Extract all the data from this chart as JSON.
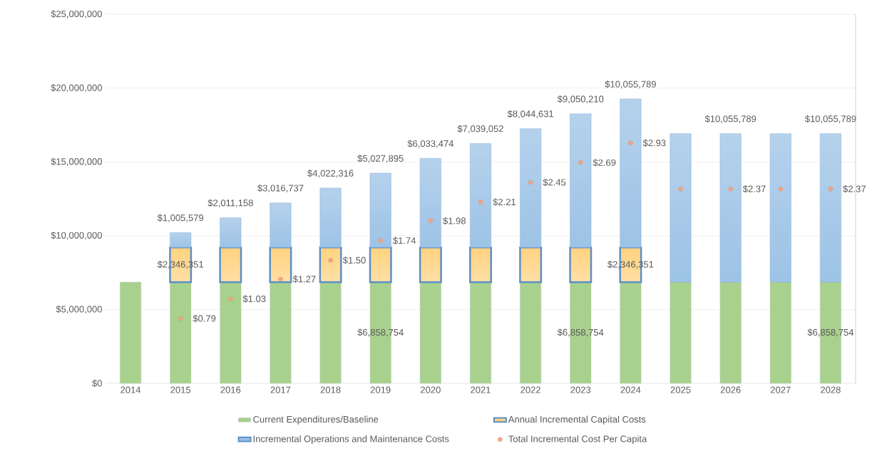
{
  "chart_data": {
    "type": "bar",
    "stacked": true,
    "categories": [
      "2014",
      "2015",
      "2016",
      "2017",
      "2018",
      "2019",
      "2020",
      "2021",
      "2022",
      "2023",
      "2024",
      "2025",
      "2026",
      "2027",
      "2028"
    ],
    "series": [
      {
        "name": "Current Expenditures/Baseline",
        "color": "#a9d18e",
        "values": [
          6858754,
          6858754,
          6858754,
          6858754,
          6858754,
          6858754,
          6858754,
          6858754,
          6858754,
          6858754,
          6858754,
          6858754,
          6858754,
          6858754,
          6858754
        ],
        "value_labels": [
          null,
          null,
          null,
          null,
          null,
          "$6,858,754",
          null,
          null,
          null,
          "$6,858,754",
          null,
          null,
          null,
          null,
          "$6,858,754"
        ]
      },
      {
        "name": "Annual Incremental Capital Costs",
        "color": "#ffd27f",
        "values": [
          null,
          2346351,
          2346351,
          2346351,
          2346351,
          2346351,
          2346351,
          2346351,
          2346351,
          2346351,
          2346351,
          null,
          null,
          null,
          null
        ],
        "value_labels": [
          null,
          "$2,346,351",
          null,
          null,
          null,
          null,
          null,
          null,
          null,
          null,
          "$2,346,351",
          null,
          null,
          null,
          null
        ]
      },
      {
        "name": "Incremental Operations and Maintenance Costs",
        "color": "#9dc3e6",
        "values": [
          null,
          1005579,
          2011158,
          3016737,
          4022316,
          5027895,
          6033474,
          7039052,
          8044631,
          9050210,
          10055789,
          10055789,
          10055789,
          10055789,
          10055789
        ],
        "value_labels": [
          null,
          "$1,005,579",
          "$2,011,158",
          "$3,016,737",
          "$4,022,316",
          "$5,027,895",
          "$6,033,474",
          "$7,039,052",
          "$8,044,631",
          "$9,050,210",
          "$10,055,789",
          null,
          "$10,055,789",
          null,
          "$10,055,789"
        ]
      },
      {
        "name": "Total Incremental Cost Per Capita",
        "type": "scatter",
        "axis": "y2",
        "color": "#f4a582",
        "values": [
          null,
          0.79,
          1.03,
          1.27,
          1.5,
          1.74,
          1.98,
          2.21,
          2.45,
          2.69,
          2.93,
          2.37,
          2.37,
          2.37,
          2.37
        ],
        "value_labels": [
          null,
          "$0.79",
          "$1.03",
          "$1.27",
          "$1.50",
          "$1.74",
          "$1.98",
          "$2.21",
          "$2.45",
          "$2.69",
          "$2.93",
          null,
          "$2.37",
          null,
          "$2.37"
        ]
      }
    ],
    "ylim": [
      0,
      25000000
    ],
    "yticks": [
      {
        "value": 0,
        "label": "$0"
      },
      {
        "value": 5000000,
        "label": "$5,000,000"
      },
      {
        "value": 10000000,
        "label": "$10,000,000"
      },
      {
        "value": 15000000,
        "label": "$15,000,000"
      },
      {
        "value": 20000000,
        "label": "$20,000,000"
      },
      {
        "value": 25000000,
        "label": "$25,000,000"
      }
    ],
    "y2lim": [
      0,
      4.5
    ],
    "grid": "y",
    "legend": "bottom"
  }
}
